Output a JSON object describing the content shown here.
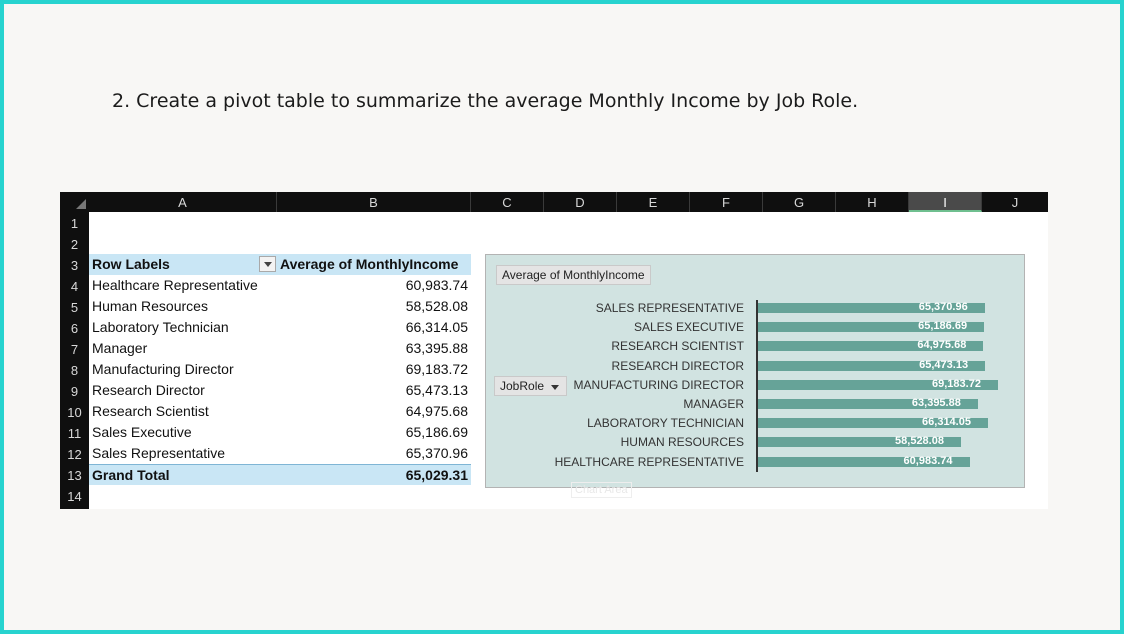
{
  "caption": "2. Create a pivot table to summarize the average Monthly Income by Job Role.",
  "columns": [
    "A",
    "B",
    "C",
    "D",
    "E",
    "F",
    "G",
    "H",
    "I",
    "J"
  ],
  "row_numbers": [
    "1",
    "2",
    "3",
    "4",
    "5",
    "6",
    "7",
    "8",
    "9",
    "10",
    "11",
    "12",
    "13",
    "14"
  ],
  "pivot": {
    "row_labels_header": "Row Labels",
    "value_header": "Average of MonthlyIncome",
    "rows": [
      {
        "label": "Healthcare Representative",
        "value": "60,983.74"
      },
      {
        "label": "Human Resources",
        "value": "58,528.08"
      },
      {
        "label": "Laboratory Technician",
        "value": "66,314.05"
      },
      {
        "label": "Manager",
        "value": "63,395.88"
      },
      {
        "label": "Manufacturing Director",
        "value": "69,183.72"
      },
      {
        "label": "Research Director",
        "value": "65,473.13"
      },
      {
        "label": "Research Scientist",
        "value": "64,975.68"
      },
      {
        "label": "Sales Executive",
        "value": "65,186.69"
      },
      {
        "label": "Sales Representative",
        "value": "65,370.96"
      }
    ],
    "grand_total_label": "Grand Total",
    "grand_total_value": "65,029.31"
  },
  "chart_fields": {
    "value_field": "Average of MonthlyIncome",
    "axis_field": "JobRole"
  },
  "chart_ghost_label": "Chart Area",
  "chart_data": {
    "type": "bar",
    "orientation": "horizontal",
    "categories": [
      "SALES REPRESENTATIVE",
      "SALES EXECUTIVE",
      "RESEARCH SCIENTIST",
      "RESEARCH DIRECTOR",
      "MANUFACTURING DIRECTOR",
      "MANAGER",
      "LABORATORY TECHNICIAN",
      "HUMAN RESOURCES",
      "HEALTHCARE REPRESENTATIVE"
    ],
    "values": [
      65370.96,
      65186.69,
      64975.68,
      65473.13,
      69183.72,
      63395.88,
      66314.05,
      58528.08,
      60983.74
    ],
    "value_labels": [
      "65,370.96",
      "65,186.69",
      "64,975.68",
      "65,473.13",
      "69,183.72",
      "63,395.88",
      "66,314.05",
      "58,528.08",
      "60,983.74"
    ],
    "xlim": [
      0,
      69183.72
    ],
    "legend": "none",
    "grid": false,
    "bar_color": "#66a398",
    "background_color": "#d1e3e1"
  }
}
